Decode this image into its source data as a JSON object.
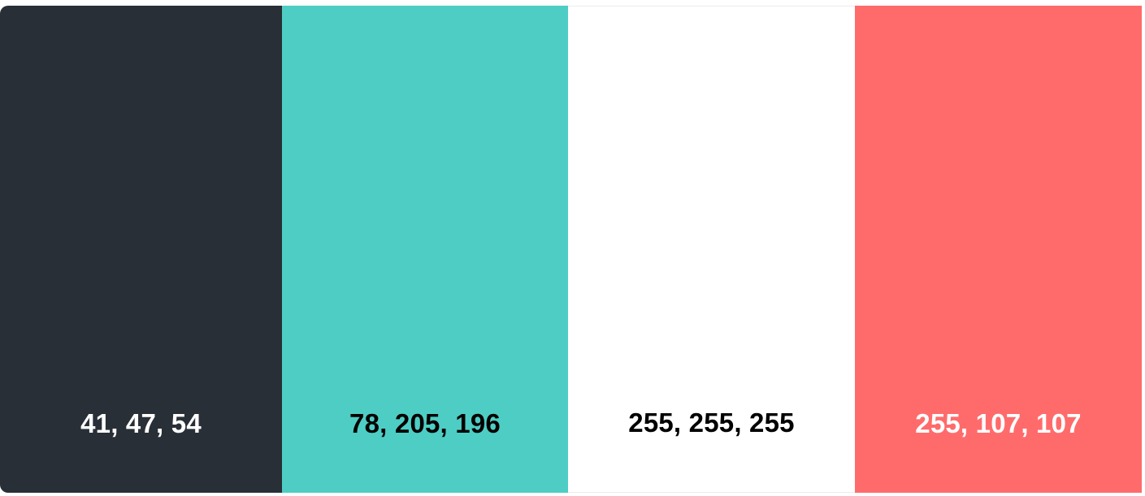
{
  "swatches": [
    {
      "label": "41, 47, 54",
      "color": "#292f36",
      "text_color": "#ffffff"
    },
    {
      "label": "78, 205, 196",
      "color": "#4ecdc4",
      "text_color": "#000000"
    },
    {
      "label": "255, 255, 255",
      "color": "#ffffff",
      "text_color": "#000000"
    },
    {
      "label": "255, 107, 107",
      "color": "#ff6b6b",
      "text_color": "#ffffff"
    }
  ]
}
